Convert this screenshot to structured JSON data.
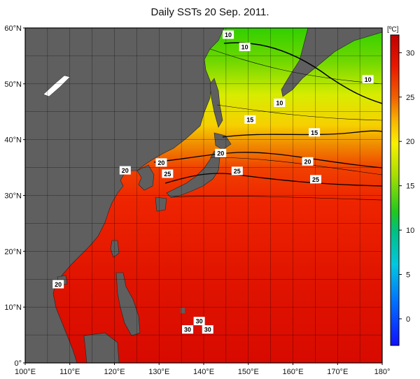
{
  "title": "Daily SSTs 20 Sep. 2011.",
  "map": {
    "lon_range": [
      100,
      180
    ],
    "lat_range": [
      0,
      60
    ],
    "lon_ticks": [
      "100°E",
      "110°E",
      "120°E",
      "130°E",
      "140°E",
      "150°E",
      "160°E",
      "170°E",
      "180°"
    ],
    "lat_ticks": [
      "60°N",
      "50°N",
      "40°N",
      "30°N",
      "20°N",
      "10°N",
      "0°"
    ],
    "land_color": "#5f5f5f",
    "grid": true
  },
  "colorbar": {
    "unit": "[ºC]",
    "range": [
      -3,
      32
    ],
    "ticks": [
      "30",
      "25",
      "20",
      "15",
      "10",
      "5",
      "0"
    ],
    "tick_values": [
      30,
      25,
      20,
      15,
      10,
      5,
      0
    ],
    "colors": [
      "#2040ff",
      "#00a0ff",
      "#00d0d0",
      "#00c060",
      "#40d000",
      "#a0e000",
      "#f0f000",
      "#f0c000",
      "#f08000",
      "#f03000",
      "#e00000",
      "#c00000"
    ]
  },
  "contour_labels": [
    {
      "text": "10",
      "lon": 145.5,
      "lat": 58.8
    },
    {
      "text": "10",
      "lon": 149.2,
      "lat": 56.6
    },
    {
      "text": "10",
      "lon": 176.8,
      "lat": 50.8
    },
    {
      "text": "10",
      "lon": 157.0,
      "lat": 46.6
    },
    {
      "text": "15",
      "lon": 150.4,
      "lat": 43.6
    },
    {
      "text": "15",
      "lon": 164.8,
      "lat": 41.3
    },
    {
      "text": "20",
      "lon": 143.8,
      "lat": 37.6
    },
    {
      "text": "20",
      "lon": 130.5,
      "lat": 35.9
    },
    {
      "text": "20",
      "lon": 163.3,
      "lat": 36.1
    },
    {
      "text": "20",
      "lon": 122.4,
      "lat": 34.5
    },
    {
      "text": "25",
      "lon": 131.9,
      "lat": 33.9
    },
    {
      "text": "25",
      "lon": 147.5,
      "lat": 34.4
    },
    {
      "text": "25",
      "lon": 165.1,
      "lat": 32.9
    },
    {
      "text": "20",
      "lon": 107.4,
      "lat": 14.1
    },
    {
      "text": "30",
      "lon": 139.0,
      "lat": 7.5
    },
    {
      "text": "30",
      "lon": 136.4,
      "lat": 6.0
    },
    {
      "text": "30",
      "lon": 140.9,
      "lat": 6.0
    }
  ]
}
